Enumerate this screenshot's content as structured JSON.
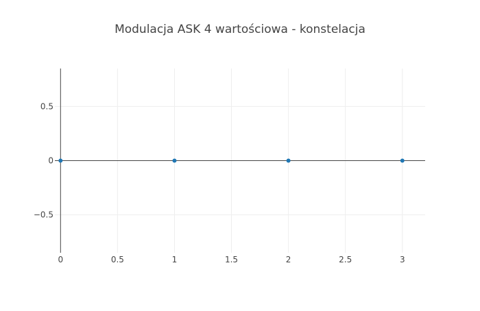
{
  "chart_data": {
    "type": "scatter",
    "title": "Modulacja ASK 4 wartościowa - konstelacja",
    "xlabel": "",
    "ylabel": "",
    "xlim": [
      -0.05,
      3.2
    ],
    "ylim": [
      -0.85,
      0.85
    ],
    "x_ticks": [
      0,
      0.5,
      1,
      1.5,
      2,
      2.5,
      3
    ],
    "x_tick_labels": [
      "0",
      "0.5",
      "1",
      "1.5",
      "2",
      "2.5",
      "3"
    ],
    "y_ticks": [
      -0.5,
      0,
      0.5
    ],
    "y_tick_labels": [
      "−0.5",
      "0",
      "0.5"
    ],
    "grid": true,
    "legend": "none",
    "series": [
      {
        "color": "#1f77b4",
        "x": [
          0,
          1,
          2,
          3
        ],
        "y": [
          0,
          0,
          0,
          0
        ]
      }
    ]
  }
}
